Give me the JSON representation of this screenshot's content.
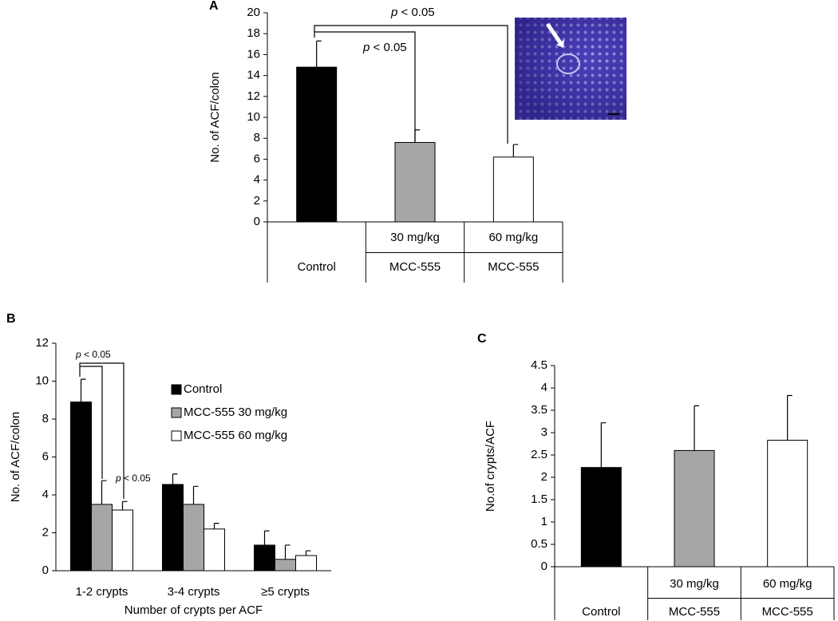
{
  "chart_data": [
    {
      "type": "bar",
      "panel_label": "A",
      "y_label": "No. of ACF/colon",
      "categories": [
        null,
        "30 mg/kg",
        "60 mg/kg"
      ],
      "categories_2": [
        "Control",
        "MCC-555",
        "MCC-555"
      ],
      "values": [
        14.8,
        7.6,
        6.2
      ],
      "errors": [
        2.5,
        1.2,
        1.2
      ],
      "colors": [
        "#000000",
        "#a6a6a6",
        "#ffffff"
      ],
      "ylim": [
        0,
        20
      ],
      "yticks": [
        0,
        2,
        4,
        6,
        8,
        10,
        12,
        14,
        16,
        18,
        20
      ],
      "grid": false,
      "annotations": [
        "p < 0.05",
        "p < 0.05"
      ]
    },
    {
      "type": "grouped_bar",
      "panel_label": "B",
      "y_label": "No. of ACF/colon",
      "x_label": "Number of crypts per ACF",
      "categories": [
        "1-2 crypts",
        "3-4 crypts",
        "≥5 crypts"
      ],
      "series": [
        {
          "name": "Control",
          "color": "#000000",
          "values": [
            8.9,
            4.55,
            1.35
          ],
          "errors": [
            1.2,
            0.55,
            0.75
          ]
        },
        {
          "name": "MCC-555 30 mg/kg",
          "color": "#a6a6a6",
          "values": [
            3.5,
            3.5,
            0.6
          ],
          "errors": [
            1.25,
            0.95,
            0.75
          ]
        },
        {
          "name": "MCC-555 60 mg/kg",
          "color": "#ffffff",
          "values": [
            3.2,
            2.2,
            0.8
          ],
          "errors": [
            0.45,
            0.3,
            0.25
          ]
        }
      ],
      "ylim": [
        0,
        12
      ],
      "yticks": [
        0,
        2,
        4,
        6,
        8,
        10,
        12
      ],
      "grid": false,
      "legend": "upper-right",
      "annotations": [
        "p < 0.05",
        "p < 0.05"
      ]
    },
    {
      "type": "bar",
      "panel_label": "C",
      "y_label": "No.of crypts/ACF",
      "categories": [
        null,
        "30 mg/kg",
        "60 mg/kg"
      ],
      "categories_2": [
        "Control",
        "MCC-555",
        "MCC-555"
      ],
      "values": [
        2.22,
        2.6,
        2.83
      ],
      "errors": [
        1.0,
        1.0,
        1.0
      ],
      "colors": [
        "#000000",
        "#a6a6a6",
        "#ffffff"
      ],
      "ylim": [
        0,
        4.5
      ],
      "yticks": [
        0,
        0.5,
        1,
        1.5,
        2,
        2.5,
        3,
        3.5,
        4,
        4.5
      ],
      "grid": false
    }
  ]
}
